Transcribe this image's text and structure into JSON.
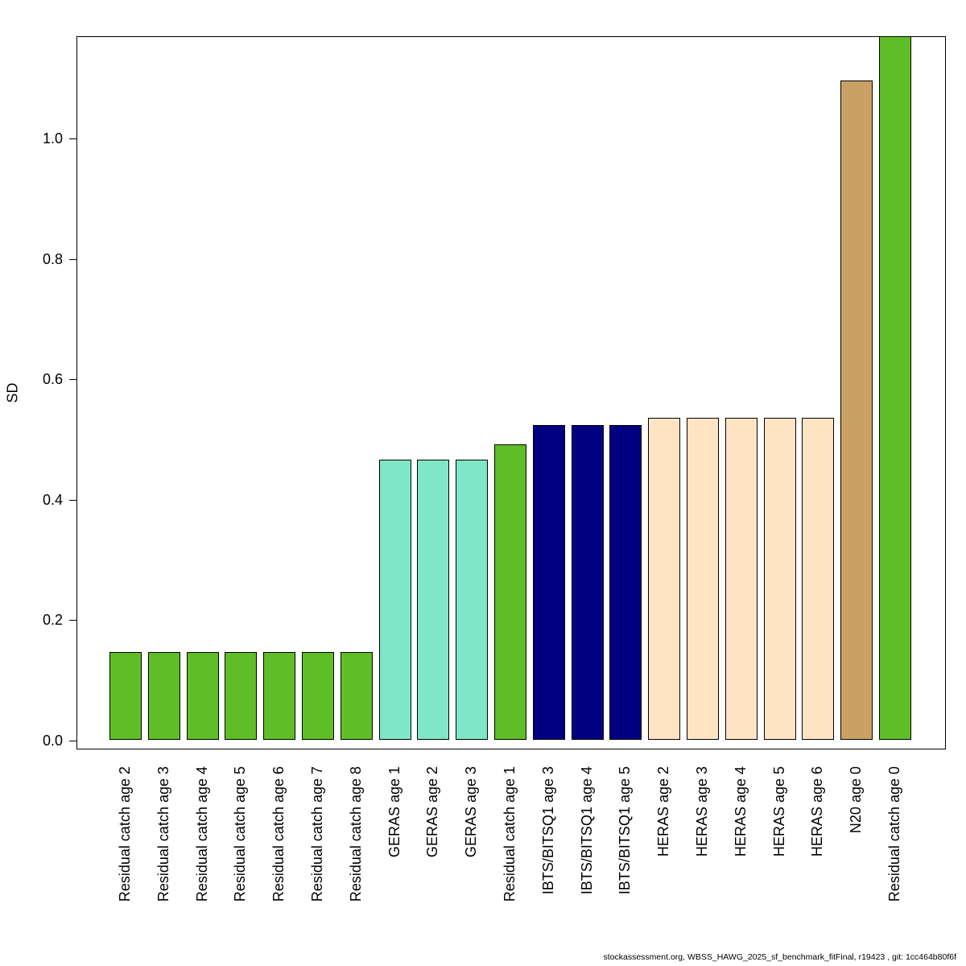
{
  "chart_data": {
    "type": "bar",
    "title": "",
    "xlabel": "",
    "ylabel": "SD",
    "ylim": [
      0,
      1.18
    ],
    "grid": false,
    "legend": "none",
    "ytick_labels": [
      "0.0",
      "0.2",
      "0.4",
      "0.6",
      "0.8",
      "1.0"
    ],
    "categories": [
      "Residual catch age 2",
      "Residual catch age 3",
      "Residual catch age 4",
      "Residual catch age 5",
      "Residual catch age 6",
      "Residual catch age 7",
      "Residual catch age 8",
      "GERAS age 1",
      "GERAS age 2",
      "GERAS age 3",
      "Residual catch age 1",
      "IBTS/BITSQ1 age 3",
      "IBTS/BITSQ1 age 4",
      "IBTS/BITSQ1 age 5",
      "HERAS age 2",
      "HERAS age 3",
      "HERAS age 4",
      "HERAS age 5",
      "HERAS age 6",
      "N20 age 0",
      "Residual catch age 0"
    ],
    "values": [
      0.146,
      0.146,
      0.146,
      0.146,
      0.146,
      0.146,
      0.146,
      0.465,
      0.465,
      0.465,
      0.49,
      0.523,
      0.523,
      0.523,
      0.535,
      0.535,
      0.535,
      0.535,
      0.535,
      1.095,
      1.18
    ],
    "colors": [
      "#5fbe27",
      "#5fbe27",
      "#5fbe27",
      "#5fbe27",
      "#5fbe27",
      "#5fbe27",
      "#5fbe27",
      "#7fe6c8",
      "#7fe6c8",
      "#7fe6c8",
      "#5fbe27",
      "#000080",
      "#000080",
      "#000080",
      "#ffe4c4",
      "#ffe4c4",
      "#ffe4c4",
      "#ffe4c4",
      "#ffe4c4",
      "#c9a165",
      "#5fbe27"
    ],
    "bar_border_color": "#000000"
  },
  "footer": {
    "text": "stockassessment.org, WBSS_HAWG_2025_sf_benchmark_fitFinal, r19423 , git: 1cc464b80f6f"
  }
}
